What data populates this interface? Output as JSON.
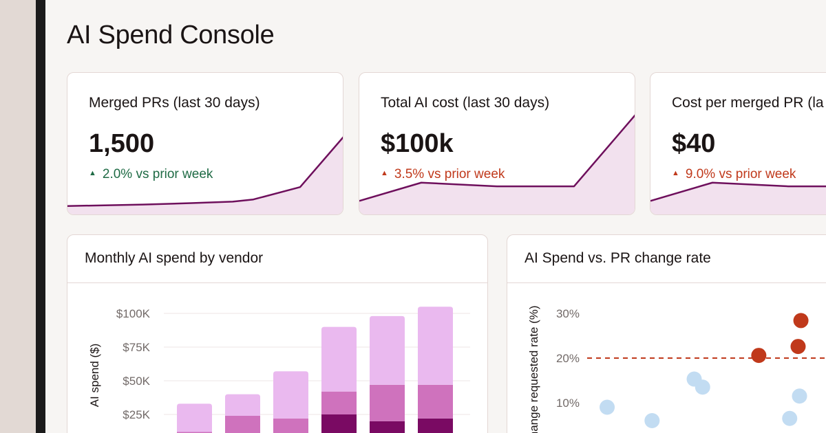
{
  "page": {
    "title": "AI Spend Console"
  },
  "colors": {
    "positive": "#1f6b45",
    "negative": "#c0391b",
    "spark_line": "#6e0f5c",
    "spark_fill": "#f2e1ee",
    "bar_vendor_a": "#7a0a63",
    "bar_vendor_b": "#cf72bd",
    "bar_vendor_c": "#eab9ef",
    "point_below": "#c2dcf2",
    "point_above": "#c0391b",
    "threshold": "#c0391b"
  },
  "kpis": [
    {
      "label": "Merged PRs (last 30 days)",
      "value": "1,500",
      "delta": "2.0% vs prior week",
      "direction": "up",
      "tone": "positive",
      "trend": [
        4,
        6,
        8,
        10,
        13,
        30,
        100
      ]
    },
    {
      "label": "Total AI cost (last 30 days)",
      "value": "$100k",
      "delta": "3.5% vs prior week",
      "direction": "up",
      "tone": "negative",
      "trend": [
        5,
        25,
        21,
        21,
        21,
        100
      ]
    },
    {
      "label": "Cost per merged PR (la",
      "value": "$40",
      "delta": "9.0% vs prior week",
      "direction": "up",
      "tone": "negative",
      "trend": [
        5,
        25,
        21,
        21,
        21,
        100
      ]
    }
  ],
  "spend_chart": {
    "title": "Monthly AI spend by vendor",
    "ylabel": "AI spend ($)",
    "yticks": [
      "$100K",
      "$75K",
      "$50K",
      "$25K"
    ],
    "chart_data": {
      "type": "bar",
      "stacked": true,
      "ylim": [
        0,
        100000
      ],
      "ylabel": "AI spend ($)",
      "categories": [
        "",
        "",
        "",
        "",
        "",
        ""
      ],
      "series": [
        {
          "color_key": "bar_vendor_a",
          "values": [
            3000,
            7000,
            7000,
            25000,
            20000,
            22000
          ]
        },
        {
          "color_key": "bar_vendor_b",
          "values": [
            9000,
            17000,
            15000,
            17000,
            27000,
            25000
          ]
        },
        {
          "color_key": "bar_vendor_c",
          "values": [
            21000,
            16000,
            35000,
            48000,
            51000,
            58000
          ]
        }
      ],
      "grid": true
    }
  },
  "scatter_chart": {
    "title": "AI Spend vs. PR change rate",
    "ylabel": "Change requested rate (%)",
    "yticks": [
      "30%",
      "20%",
      "10%"
    ],
    "chart_data": {
      "type": "scatter",
      "ylabel": "Change requested rate (%)",
      "ylim": [
        0,
        35
      ],
      "xlim": [
        0,
        100
      ],
      "threshold": 20,
      "points": [
        {
          "x": 13,
          "y": 9,
          "above": false
        },
        {
          "x": 29,
          "y": 6,
          "above": false
        },
        {
          "x": 44,
          "y": 15.3,
          "above": false
        },
        {
          "x": 47,
          "y": 13.5,
          "above": false
        },
        {
          "x": 67,
          "y": 20.6,
          "above": true
        },
        {
          "x": 78,
          "y": 6.5,
          "above": false
        },
        {
          "x": 81,
          "y": 22.6,
          "above": true
        },
        {
          "x": 81.5,
          "y": 11.5,
          "above": false
        },
        {
          "x": 82,
          "y": 28.4,
          "above": true
        }
      ]
    }
  }
}
